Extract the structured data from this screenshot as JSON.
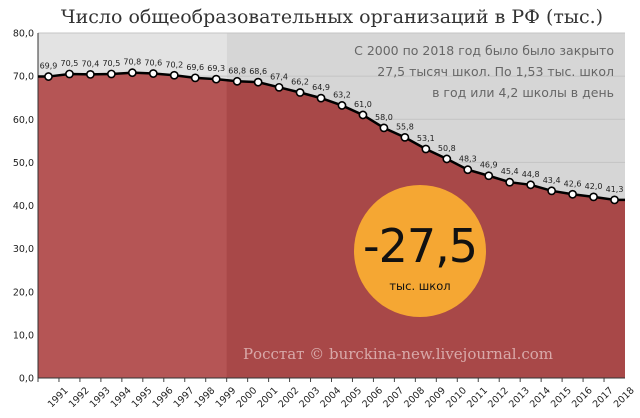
{
  "title": "Число общеобразовательных организаций в РФ (тыс.)",
  "annotation": {
    "lines": [
      "С 2000 по 2018 год было было закрыто",
      "27,5 тысяч школ. По 1,53 тыс. школ",
      "в год или 4,2 школы в день"
    ]
  },
  "badge": {
    "value": "-27,5",
    "label": "тыс. школ"
  },
  "source": "Росстат © burckina-new.livejournal.com",
  "colors": {
    "area": "#b55555",
    "area_highlight": "#a84848",
    "plot_bg": "#e3e3e3",
    "plot_bg_highlight": "#d6d6d6",
    "line": "#000000",
    "badge": "#f5a733"
  },
  "chart_data": {
    "type": "area",
    "x": [
      "1991",
      "1992",
      "1993",
      "1994",
      "1995",
      "1996",
      "1997",
      "1998",
      "1999",
      "2000",
      "2001",
      "2002",
      "2003",
      "2004",
      "2005",
      "2006",
      "2007",
      "2008",
      "2009",
      "2010",
      "2011",
      "2012",
      "2013",
      "2014",
      "2015",
      "2016",
      "2017",
      "2018"
    ],
    "values": [
      69.9,
      70.5,
      70.4,
      70.5,
      70.8,
      70.6,
      70.2,
      69.6,
      69.3,
      68.8,
      68.6,
      67.4,
      66.2,
      64.9,
      63.2,
      61.0,
      58.0,
      55.8,
      53.1,
      50.8,
      48.3,
      46.9,
      45.4,
      44.8,
      43.4,
      42.6,
      42.0,
      41.3
    ],
    "labels": [
      "69,9",
      "70,5",
      "70,4",
      "70,5",
      "70,8",
      "70,6",
      "70,2",
      "69,6",
      "69,3",
      "68,8",
      "68,6",
      "67,4",
      "66,2",
      "64,9",
      "63,2",
      "61,0",
      "58,0",
      "55,8",
      "53,1",
      "50,8",
      "48,3",
      "46,9",
      "45,4",
      "44,8",
      "43,4",
      "42,6",
      "42,0",
      "41,3"
    ],
    "ylim": [
      0,
      80
    ],
    "yticks": [
      "0,0",
      "10,0",
      "20,0",
      "30,0",
      "40,0",
      "50,0",
      "60,0",
      "70,0",
      "80,0"
    ],
    "highlight_from": "2000",
    "grid": true
  }
}
